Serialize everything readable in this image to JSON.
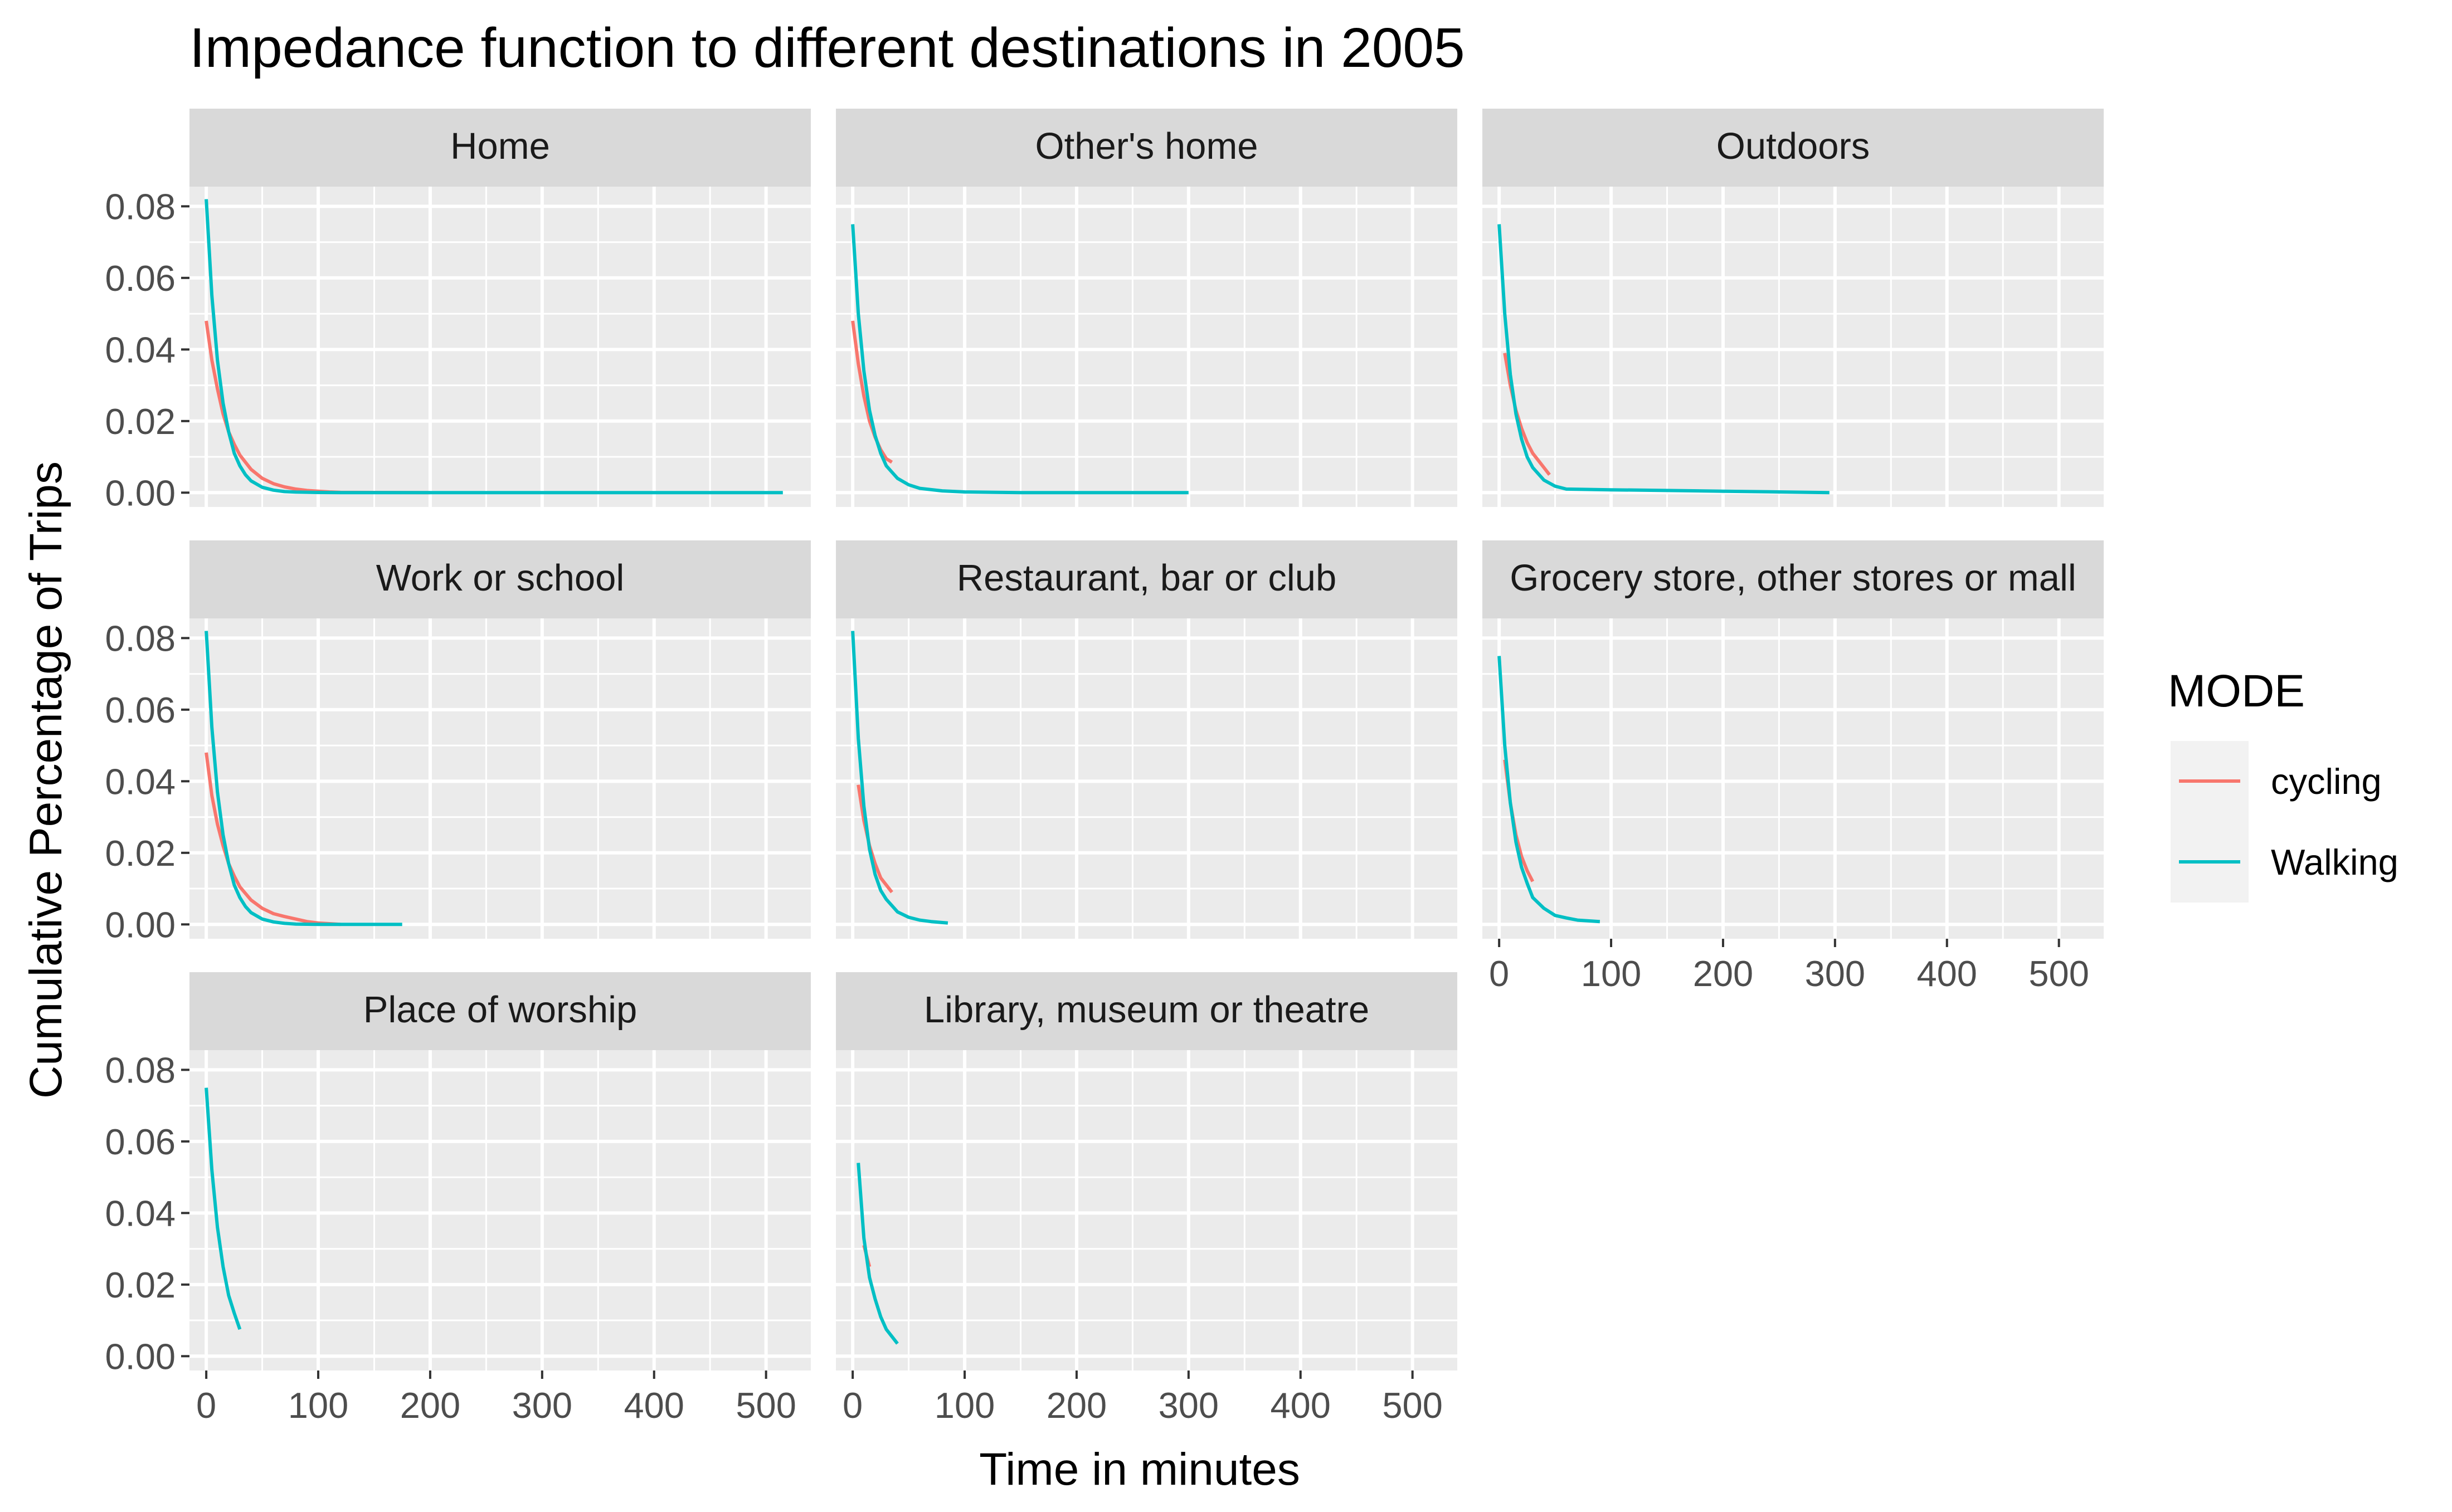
{
  "chart_data": {
    "type": "line",
    "title": "Impedance function to different destinations in 2005",
    "xlabel": "Time in minutes",
    "ylabel": "Cumulative Percentage of Trips",
    "xlim": [
      -15,
      540
    ],
    "ylim": [
      -0.004,
      0.0855
    ],
    "x_ticks": [
      "0",
      "100",
      "200",
      "300",
      "400",
      "500"
    ],
    "x_tick_values": [
      0,
      100,
      200,
      300,
      400,
      500
    ],
    "y_ticks": [
      "0.00",
      "0.02",
      "0.04",
      "0.06",
      "0.08"
    ],
    "y_tick_values": [
      0,
      0.02,
      0.04,
      0.06,
      0.08
    ],
    "grid": true,
    "legend": {
      "title": "MODE",
      "placement": "right",
      "entries": [
        {
          "label": "cycling",
          "color": "#F8766D"
        },
        {
          "label": "Walking",
          "color": "#00BFC4"
        }
      ]
    },
    "panels": [
      {
        "name": "Home",
        "series": [
          {
            "name": "cycling",
            "x": [
              0,
              5,
              10,
              15,
              20,
              25,
              30,
              40,
              50,
              60,
              70,
              80,
              90,
              100,
              110,
              120,
              150,
              200
            ],
            "y": [
              0.048,
              0.037,
              0.029,
              0.022,
              0.017,
              0.0135,
              0.0105,
              0.0065,
              0.004,
              0.0025,
              0.0016,
              0.001,
              0.0006,
              0.0004,
              0.0002,
              0.0001,
              5e-05,
              0.0
            ]
          },
          {
            "name": "Walking",
            "x": [
              0,
              5,
              10,
              15,
              20,
              25,
              30,
              35,
              40,
              50,
              60,
              70,
              80,
              100,
              120,
              150,
              200,
              300,
              400,
              515
            ],
            "y": [
              0.082,
              0.055,
              0.037,
              0.025,
              0.017,
              0.011,
              0.0075,
              0.005,
              0.0033,
              0.0015,
              0.0007,
              0.0003,
              0.00015,
              5e-05,
              0.0,
              0.0,
              0.0,
              0.0,
              0.0,
              0.0
            ]
          }
        ]
      },
      {
        "name": "Other's home",
        "series": [
          {
            "name": "cycling",
            "x": [
              0,
              5,
              10,
              15,
              20,
              25,
              30,
              35
            ],
            "y": [
              0.048,
              0.036,
              0.027,
              0.02,
              0.0155,
              0.012,
              0.0095,
              0.0085
            ]
          },
          {
            "name": "Walking",
            "x": [
              0,
              5,
              10,
              15,
              20,
              25,
              30,
              40,
              50,
              60,
              80,
              100,
              150,
              200,
              250,
              300
            ],
            "y": [
              0.075,
              0.05,
              0.034,
              0.023,
              0.016,
              0.011,
              0.0075,
              0.004,
              0.0022,
              0.0012,
              0.0005,
              0.0002,
              0.0,
              0.0,
              0.0,
              0.0
            ]
          }
        ]
      },
      {
        "name": "Outdoors",
        "series": [
          {
            "name": "cycling",
            "x": [
              5,
              10,
              15,
              20,
              25,
              30,
              35,
              40,
              45
            ],
            "y": [
              0.039,
              0.03,
              0.023,
              0.018,
              0.014,
              0.011,
              0.009,
              0.007,
              0.005
            ]
          },
          {
            "name": "Walking",
            "x": [
              0,
              5,
              10,
              15,
              20,
              25,
              30,
              40,
              50,
              60,
              100,
              150,
              200,
              250,
              295
            ],
            "y": [
              0.075,
              0.05,
              0.033,
              0.022,
              0.015,
              0.01,
              0.007,
              0.0035,
              0.0018,
              0.001,
              0.0008,
              0.0006,
              0.0004,
              0.0002,
              0.0
            ]
          }
        ]
      },
      {
        "name": "Work or school",
        "series": [
          {
            "name": "cycling",
            "x": [
              0,
              5,
              10,
              15,
              20,
              25,
              30,
              40,
              50,
              60,
              70,
              80,
              90,
              100,
              120
            ],
            "y": [
              0.048,
              0.036,
              0.028,
              0.022,
              0.017,
              0.0135,
              0.0105,
              0.0068,
              0.0045,
              0.003,
              0.0022,
              0.0015,
              0.0008,
              0.0004,
              0.0
            ]
          },
          {
            "name": "Walking",
            "x": [
              0,
              5,
              10,
              15,
              20,
              25,
              30,
              35,
              40,
              50,
              60,
              70,
              80,
              100,
              120,
              140,
              175
            ],
            "y": [
              0.082,
              0.055,
              0.037,
              0.025,
              0.017,
              0.011,
              0.0075,
              0.005,
              0.0033,
              0.0015,
              0.0007,
              0.0003,
              0.0001,
              0.0,
              0.0,
              0.0,
              0.0
            ]
          }
        ]
      },
      {
        "name": "Restaurant, bar or club",
        "series": [
          {
            "name": "cycling",
            "x": [
              5,
              10,
              15,
              20,
              25,
              30,
              35
            ],
            "y": [
              0.039,
              0.029,
              0.022,
              0.017,
              0.013,
              0.011,
              0.009
            ]
          },
          {
            "name": "Walking",
            "x": [
              0,
              5,
              10,
              15,
              20,
              25,
              30,
              40,
              50,
              60,
              70,
              85
            ],
            "y": [
              0.082,
              0.052,
              0.033,
              0.021,
              0.014,
              0.0095,
              0.007,
              0.0035,
              0.002,
              0.0012,
              0.0008,
              0.0004
            ]
          }
        ]
      },
      {
        "name": "Grocery store, other stores or mall",
        "series": [
          {
            "name": "cycling",
            "x": [
              5,
              10,
              15,
              20,
              25,
              30
            ],
            "y": [
              0.046,
              0.034,
              0.025,
              0.019,
              0.015,
              0.012
            ]
          },
          {
            "name": "Walking",
            "x": [
              0,
              5,
              10,
              15,
              20,
              25,
              30,
              40,
              50,
              60,
              70,
              90
            ],
            "y": [
              0.075,
              0.05,
              0.034,
              0.023,
              0.016,
              0.0115,
              0.0075,
              0.0045,
              0.0025,
              0.0018,
              0.0012,
              0.0008
            ]
          }
        ]
      },
      {
        "name": "Place of worship",
        "series": [
          {
            "name": "Walking",
            "x": [
              0,
              5,
              10,
              15,
              20,
              25,
              30
            ],
            "y": [
              0.075,
              0.052,
              0.036,
              0.025,
              0.017,
              0.012,
              0.0075
            ]
          }
        ]
      },
      {
        "name": "Library, museum or theatre",
        "series": [
          {
            "name": "cycling",
            "x": [
              10,
              15
            ],
            "y": [
              0.031,
              0.025
            ]
          },
          {
            "name": "Walking",
            "x": [
              5,
              10,
              15,
              20,
              25,
              30,
              35,
              40
            ],
            "y": [
              0.054,
              0.033,
              0.022,
              0.016,
              0.011,
              0.0075,
              0.0055,
              0.0035
            ]
          }
        ]
      }
    ]
  }
}
